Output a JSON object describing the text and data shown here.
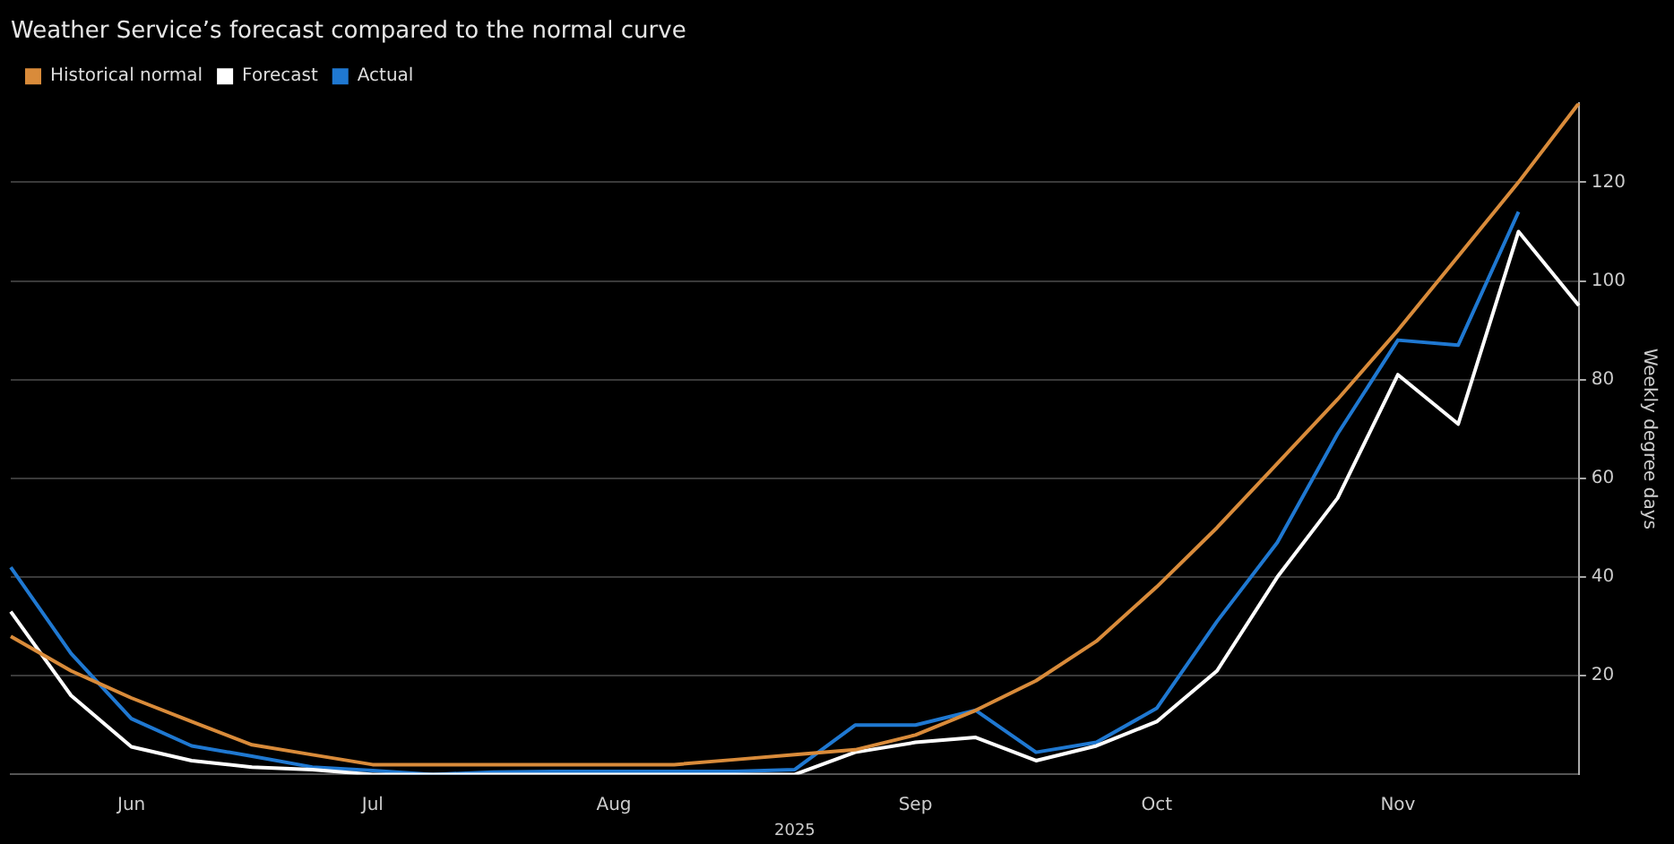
{
  "chart_data": {
    "type": "line",
    "title": "Weather Service’s forecast compared to the normal curve",
    "xlabel": "2025",
    "ylabel": "Weekly degree days",
    "categories": [
      null,
      null,
      "Jun",
      null,
      null,
      null,
      "Jul",
      null,
      null,
      null,
      "Aug",
      null,
      null,
      null,
      null,
      "Sep",
      null,
      null,
      null,
      "Oct",
      null,
      null,
      null,
      "Nov",
      null,
      null,
      null
    ],
    "series": [
      {
        "name": "Historical normal",
        "color": "#d98b3a",
        "values": [
          28,
          21,
          15.5,
          10.7,
          6,
          4,
          2,
          2,
          2,
          2,
          2,
          2,
          3,
          4,
          5,
          8,
          13,
          19,
          27,
          38,
          50,
          63,
          76,
          90,
          105,
          120,
          136
        ]
      },
      {
        "name": "Forecast",
        "color": "#ffffff",
        "values": [
          33,
          16,
          5.6,
          2.8,
          1.5,
          1,
          0,
          0,
          0,
          0,
          0,
          0,
          0,
          0,
          4.5,
          6.5,
          7.5,
          2.8,
          5.8,
          10.7,
          21,
          40,
          56,
          81,
          71,
          110,
          95
        ]
      },
      {
        "name": "Actual",
        "color": "#1f78d1",
        "values": [
          42,
          24.5,
          11.3,
          5.8,
          3.7,
          1.5,
          0.8,
          0,
          0.5,
          0.6,
          0.6,
          0.6,
          0.6,
          1,
          10,
          10,
          13,
          4.5,
          6.5,
          13.4,
          31,
          47,
          69,
          88,
          87,
          114,
          null
        ]
      }
    ],
    "ylim": [
      0,
      136
    ],
    "yticks": [
      20,
      40,
      60,
      80,
      100,
      120
    ],
    "grid": "y",
    "legend": "top left",
    "marker": "none",
    "line_style": "solid"
  }
}
